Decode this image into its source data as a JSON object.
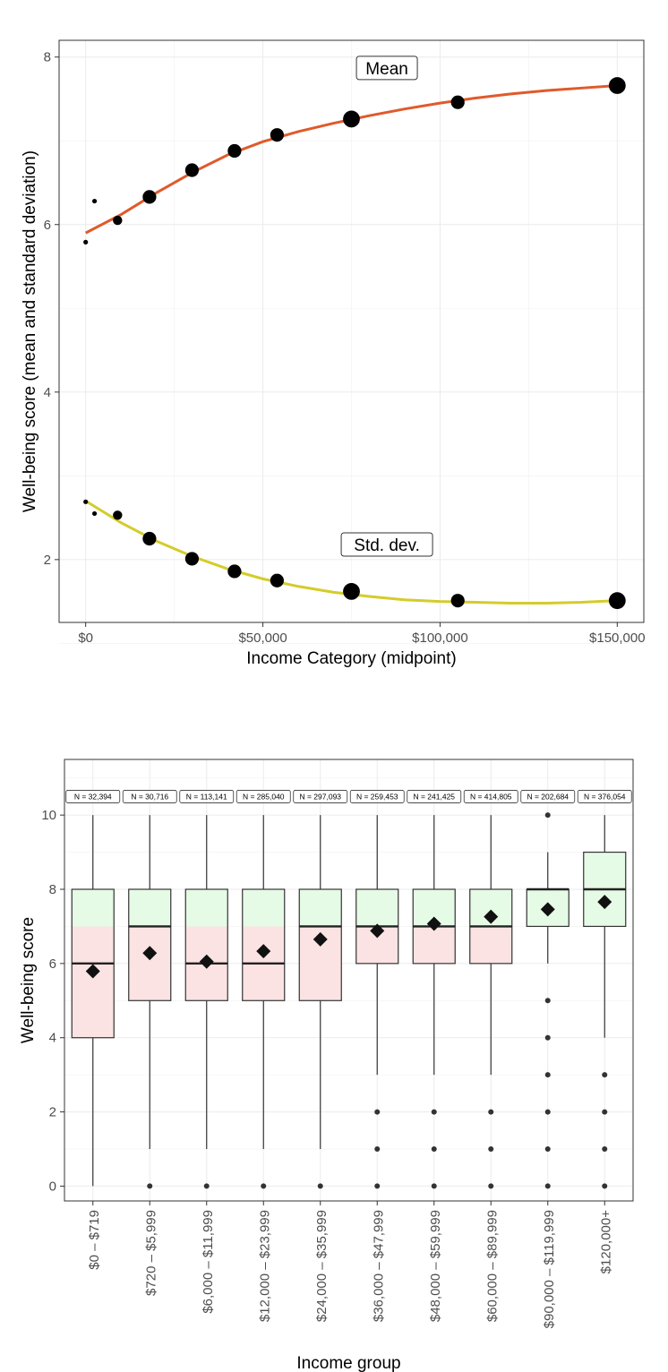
{
  "chart_data": [
    {
      "type": "scatter",
      "title": "",
      "xlabel": "Income Category (midpoint)",
      "ylabel": "Well-being score (mean and standard deviation)",
      "xlim": [
        -7500,
        157500
      ],
      "ylim": [
        1.25,
        8.2
      ],
      "x_ticks": [
        0,
        50000,
        100000,
        150000
      ],
      "x_tick_labels": [
        "$0",
        "$50,000",
        "$100,000",
        "$150,000"
      ],
      "y_ticks": [
        2,
        4,
        6,
        8
      ],
      "y_tick_labels": [
        "2",
        "4",
        "6",
        "8"
      ],
      "grid": true,
      "annotations": [
        {
          "text": "Mean",
          "x": 85000,
          "y": 7.87
        },
        {
          "text": "Std. dev.",
          "x": 85000,
          "y": 2.18
        }
      ],
      "series": [
        {
          "color": "#e05a2b",
          "points": [
            {
              "x": 0,
              "y": 5.79,
              "size": 1
            },
            {
              "x": 2500,
              "y": 6.28,
              "size": 1
            },
            {
              "x": 9000,
              "y": 6.05,
              "size": 2
            },
            {
              "x": 18000,
              "y": 6.33,
              "size": 3
            },
            {
              "x": 30000,
              "y": 6.65,
              "size": 3
            },
            {
              "x": 42000,
              "y": 6.88,
              "size": 3
            },
            {
              "x": 54000,
              "y": 7.07,
              "size": 3
            },
            {
              "x": 75000,
              "y": 7.26,
              "size": 4
            },
            {
              "x": 105000,
              "y": 7.46,
              "size": 3
            },
            {
              "x": 150000,
              "y": 7.66,
              "size": 4
            }
          ],
          "trend": [
            [
              0,
              5.9
            ],
            [
              10000,
              6.12
            ],
            [
              20000,
              6.38
            ],
            [
              30000,
              6.62
            ],
            [
              40000,
              6.83
            ],
            [
              50000,
              6.99
            ],
            [
              60000,
              7.11
            ],
            [
              70000,
              7.21
            ],
            [
              80000,
              7.3
            ],
            [
              90000,
              7.38
            ],
            [
              100000,
              7.45
            ],
            [
              110000,
              7.51
            ],
            [
              120000,
              7.56
            ],
            [
              130000,
              7.6
            ],
            [
              140000,
              7.63
            ],
            [
              150000,
              7.66
            ]
          ]
        },
        {
          "color": "#d4cc2a",
          "points": [
            {
              "x": 0,
              "y": 2.69,
              "size": 1
            },
            {
              "x": 2500,
              "y": 2.55,
              "size": 1
            },
            {
              "x": 9000,
              "y": 2.53,
              "size": 2
            },
            {
              "x": 18000,
              "y": 2.25,
              "size": 3
            },
            {
              "x": 30000,
              "y": 2.01,
              "size": 3
            },
            {
              "x": 42000,
              "y": 1.86,
              "size": 3
            },
            {
              "x": 54000,
              "y": 1.75,
              "size": 3
            },
            {
              "x": 75000,
              "y": 1.62,
              "size": 4
            },
            {
              "x": 105000,
              "y": 1.51,
              "size": 3
            },
            {
              "x": 150000,
              "y": 1.51,
              "size": 4
            }
          ],
          "trend": [
            [
              0,
              2.7
            ],
            [
              10000,
              2.44
            ],
            [
              20000,
              2.22
            ],
            [
              30000,
              2.04
            ],
            [
              40000,
              1.89
            ],
            [
              50000,
              1.77
            ],
            [
              60000,
              1.68
            ],
            [
              70000,
              1.61
            ],
            [
              80000,
              1.56
            ],
            [
              90000,
              1.52
            ],
            [
              100000,
              1.5
            ],
            [
              110000,
              1.49
            ],
            [
              120000,
              1.48
            ],
            [
              130000,
              1.48
            ],
            [
              140000,
              1.49
            ],
            [
              150000,
              1.51
            ]
          ]
        }
      ]
    },
    {
      "type": "box",
      "title": "",
      "xlabel": "Income group",
      "ylabel": "Well-being score",
      "ylim": [
        -0.4,
        11.5
      ],
      "y_ticks": [
        0,
        2,
        4,
        6,
        8,
        10
      ],
      "y_tick_labels": [
        "0",
        "2",
        "4",
        "6",
        "8",
        "10"
      ],
      "grid": true,
      "fill_below_7": "#fbe3e3",
      "fill_above_7": "#e6fbe6",
      "categories": [
        "$0 – $719",
        "$720 – $5,999",
        "$6,000 – $11,999",
        "$12,000 – $23,999",
        "$24,000 – $35,999",
        "$36,000 – $47,999",
        "$48,000 – $59,999",
        "$60,000 – $89,999",
        "$90,000 – $119,999",
        "$120,000+"
      ],
      "n_labels": [
        "N = 32,394",
        "N = 30,716",
        "N = 113,141",
        "N = 285,040",
        "N = 297,093",
        "N = 259,453",
        "N = 241,425",
        "N = 414,805",
        "N = 202,684",
        "N = 376,054"
      ],
      "boxes": [
        {
          "q1": 4,
          "median": 6,
          "q3": 8,
          "whisker_low": 0,
          "whisker_high": 10,
          "mean": 5.79,
          "outliers": []
        },
        {
          "q1": 5,
          "median": 7,
          "q3": 8,
          "whisker_low": 1,
          "whisker_high": 10,
          "mean": 6.28,
          "outliers": [
            0
          ]
        },
        {
          "q1": 5,
          "median": 6,
          "q3": 8,
          "whisker_low": 1,
          "whisker_high": 10,
          "mean": 6.05,
          "outliers": [
            0
          ]
        },
        {
          "q1": 5,
          "median": 6,
          "q3": 8,
          "whisker_low": 1,
          "whisker_high": 10,
          "mean": 6.33,
          "outliers": [
            0
          ]
        },
        {
          "q1": 5,
          "median": 7,
          "q3": 8,
          "whisker_low": 1,
          "whisker_high": 10,
          "mean": 6.65,
          "outliers": [
            0
          ]
        },
        {
          "q1": 6,
          "median": 7,
          "q3": 8,
          "whisker_low": 3,
          "whisker_high": 10,
          "mean": 6.88,
          "outliers": [
            0,
            1,
            2
          ]
        },
        {
          "q1": 6,
          "median": 7,
          "q3": 8,
          "whisker_low": 3,
          "whisker_high": 10,
          "mean": 7.07,
          "outliers": [
            0,
            1,
            2
          ]
        },
        {
          "q1": 6,
          "median": 7,
          "q3": 8,
          "whisker_low": 3,
          "whisker_high": 10,
          "mean": 7.26,
          "outliers": [
            0,
            1,
            2
          ]
        },
        {
          "q1": 7,
          "median": 8,
          "q3": 8,
          "whisker_low": 6,
          "whisker_high": 9,
          "mean": 7.46,
          "outliers": [
            0,
            1,
            2,
            3,
            4,
            5,
            10
          ]
        },
        {
          "q1": 7,
          "median": 8,
          "q3": 9,
          "whisker_low": 4,
          "whisker_high": 10,
          "mean": 7.66,
          "outliers": [
            0,
            1,
            2,
            3
          ]
        }
      ]
    }
  ]
}
